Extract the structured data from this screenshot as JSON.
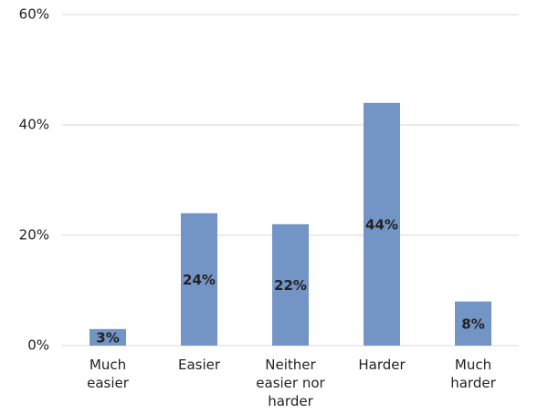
{
  "chart_data": {
    "type": "bar",
    "categories": [
      "Much easier",
      "Easier",
      "Neither easier nor harder",
      "Harder",
      "Much harder"
    ],
    "values": [
      3,
      24,
      22,
      44,
      8
    ],
    "value_labels": [
      "3%",
      "24%",
      "22%",
      "44%",
      "8%"
    ],
    "color": "#7395c6",
    "ylim": [
      0,
      60
    ],
    "yticks": [
      {
        "value": 0,
        "label": "0%"
      },
      {
        "value": 20,
        "label": "20%"
      },
      {
        "value": 40,
        "label": "40%"
      },
      {
        "value": 60,
        "label": "60%"
      }
    ],
    "grid": true
  }
}
